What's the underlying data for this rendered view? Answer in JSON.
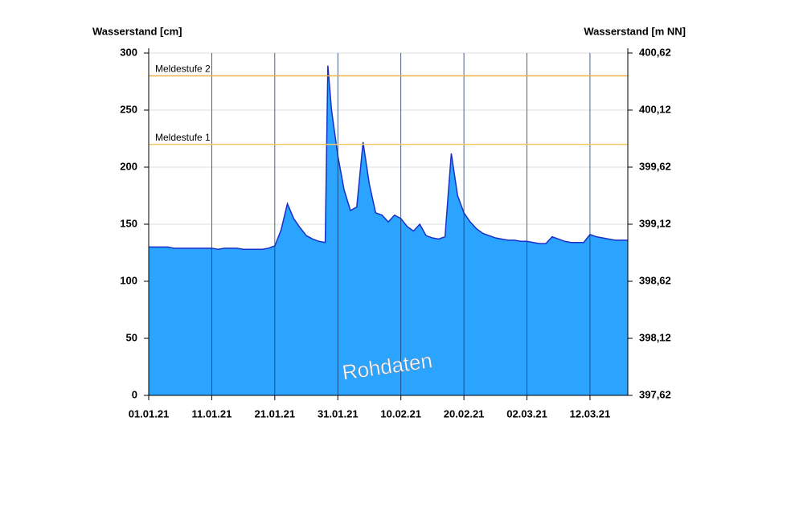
{
  "chart_data": {
    "type": "area",
    "y_label": "Wasserstand [cm]",
    "y2_label": "Wasserstand [m NN]",
    "watermark": "Rohdaten",
    "color": "#2aa4ff",
    "line_color": "#1a2fc8",
    "grid": true,
    "xlim": [
      "2021-01-01",
      "2021-03-18"
    ],
    "xticks": [
      {
        "value": "2021-01-01",
        "label": "01.01.21"
      },
      {
        "value": "2021-01-11",
        "label": "11.01.21"
      },
      {
        "value": "2021-01-21",
        "label": "21.01.21"
      },
      {
        "value": "2021-01-31",
        "label": "31.01.21"
      },
      {
        "value": "2021-02-10",
        "label": "10.02.21"
      },
      {
        "value": "2021-02-20",
        "label": "20.02.21"
      },
      {
        "value": "2021-03-02",
        "label": "02.03.21"
      },
      {
        "value": "2021-03-12",
        "label": "12.03.21"
      }
    ],
    "ylim": [
      0,
      300
    ],
    "yticks": [
      0,
      50,
      100,
      150,
      200,
      250,
      300
    ],
    "y2lim": [
      397.62,
      400.62
    ],
    "y2ticks": [
      {
        "value": 397.62,
        "label": "397,62"
      },
      {
        "value": 398.12,
        "label": "398,12"
      },
      {
        "value": 398.62,
        "label": "398,62"
      },
      {
        "value": 399.12,
        "label": "399,12"
      },
      {
        "value": 399.62,
        "label": "399,62"
      },
      {
        "value": 400.12,
        "label": "400,12"
      },
      {
        "value": 400.62,
        "label": "400,62"
      }
    ],
    "thresholds": [
      {
        "label": "Meldestufe 2",
        "value": 280,
        "color": "#f0b040"
      },
      {
        "label": "Meldestufe 1",
        "value": 220,
        "color": "#f0c860"
      }
    ],
    "x": [
      "2021-01-01",
      "2021-01-02",
      "2021-01-03",
      "2021-01-04",
      "2021-01-05",
      "2021-01-06",
      "2021-01-07",
      "2021-01-08",
      "2021-01-09",
      "2021-01-10",
      "2021-01-11",
      "2021-01-12",
      "2021-01-13",
      "2021-01-14",
      "2021-01-15",
      "2021-01-16",
      "2021-01-17",
      "2021-01-18",
      "2021-01-19",
      "2021-01-20",
      "2021-01-21",
      "2021-01-22",
      "2021-01-23",
      "2021-01-24",
      "2021-01-25",
      "2021-01-26",
      "2021-01-27",
      "2021-01-28",
      "2021-01-29",
      "2021-01-29T10:00",
      "2021-01-30",
      "2021-01-31",
      "2021-02-01",
      "2021-02-02",
      "2021-02-03",
      "2021-02-04",
      "2021-02-05",
      "2021-02-06",
      "2021-02-07",
      "2021-02-08",
      "2021-02-09",
      "2021-02-10",
      "2021-02-11",
      "2021-02-12",
      "2021-02-13",
      "2021-02-14",
      "2021-02-15",
      "2021-02-16",
      "2021-02-17",
      "2021-02-18",
      "2021-02-19",
      "2021-02-20",
      "2021-02-21",
      "2021-02-22",
      "2021-02-23",
      "2021-02-24",
      "2021-02-25",
      "2021-02-26",
      "2021-02-27",
      "2021-02-28",
      "2021-03-01",
      "2021-03-02",
      "2021-03-03",
      "2021-03-04",
      "2021-03-05",
      "2021-03-06",
      "2021-03-07",
      "2021-03-08",
      "2021-03-09",
      "2021-03-10",
      "2021-03-11",
      "2021-03-12",
      "2021-03-13",
      "2021-03-14",
      "2021-03-15",
      "2021-03-16",
      "2021-03-17",
      "2021-03-18"
    ],
    "values": [
      130,
      130,
      130,
      130,
      129,
      129,
      129,
      129,
      129,
      129,
      129,
      128,
      129,
      129,
      129,
      128,
      128,
      128,
      128,
      129,
      131,
      145,
      168,
      155,
      147,
      140,
      137,
      135,
      134,
      289,
      250,
      210,
      180,
      162,
      165,
      222,
      185,
      160,
      158,
      152,
      158,
      155,
      148,
      144,
      150,
      140,
      138,
      137,
      139,
      212,
      175,
      160,
      152,
      146,
      142,
      140,
      138,
      137,
      136,
      136,
      135,
      135,
      134,
      133,
      133,
      139,
      137,
      135,
      134,
      134,
      134,
      141,
      139,
      138,
      137,
      136,
      136,
      136
    ]
  }
}
